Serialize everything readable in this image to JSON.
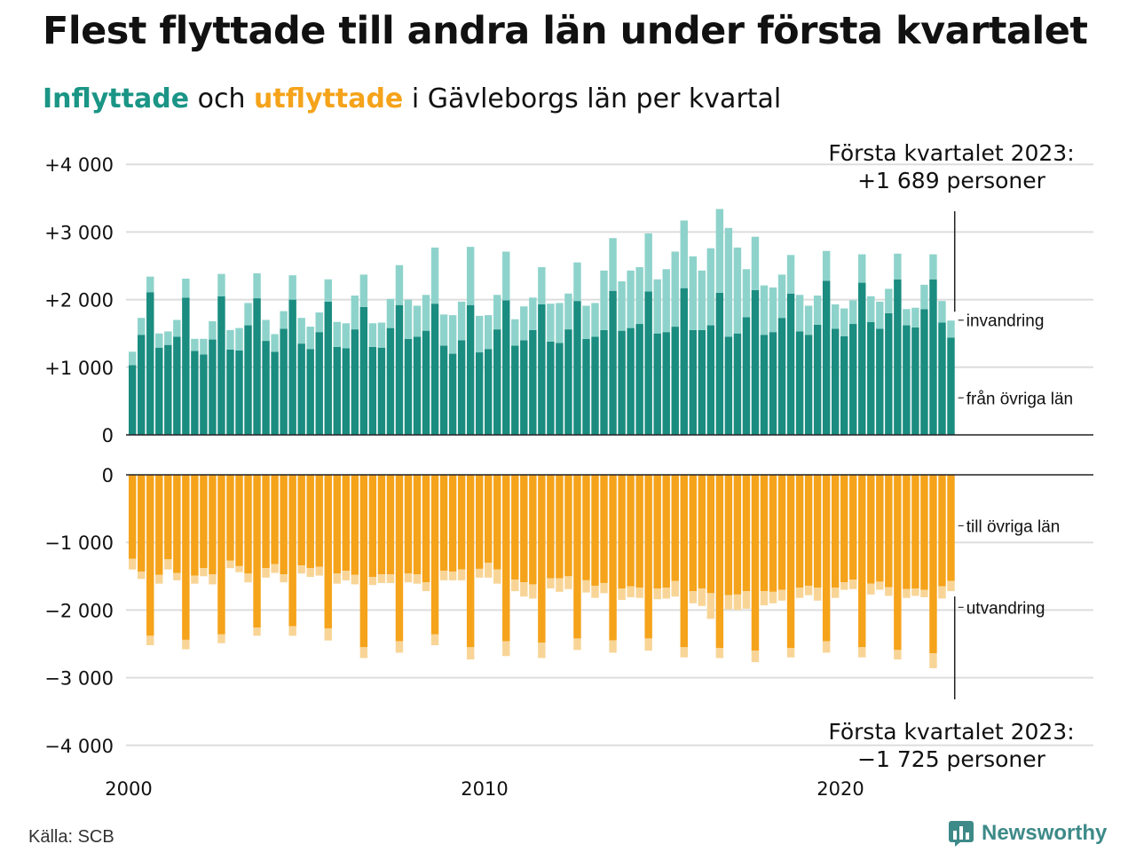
{
  "title": "Flest flyttade till andra län under första kvartalet",
  "subtitle": {
    "in_label": "Inflyttade",
    "connector": "och",
    "out_label": "utflyttade",
    "rest": "i Gävleborgs län per kvartal"
  },
  "source": "Källa: SCB",
  "brand": "Newsworthy",
  "colors": {
    "in_dark": "#1a8c80",
    "in_light": "#8ed3cb",
    "out_dark": "#f5a31a",
    "out_light": "#f8d597",
    "grid": "#dddddd"
  },
  "chart_data": {
    "type": "bar",
    "stacked": true,
    "quarters_start": "2000 Q1",
    "quarters_end": "2023 Q1",
    "x_ticks": [
      "2000",
      "2010",
      "2020"
    ],
    "top_panel": {
      "y_ticks": [
        "+4 000",
        "+3 000",
        "+2 000",
        "+1 000",
        "0"
      ],
      "ylim": [
        0,
        4000
      ],
      "series": [
        {
          "name": "från övriga län",
          "color": "#1a8c80",
          "values": [
            1030,
            1480,
            2110,
            1290,
            1330,
            1450,
            2030,
            1240,
            1190,
            1410,
            2050,
            1260,
            1250,
            1620,
            2020,
            1390,
            1230,
            1570,
            2000,
            1350,
            1270,
            1520,
            1970,
            1300,
            1280,
            1560,
            1890,
            1300,
            1290,
            1580,
            1920,
            1420,
            1450,
            1540,
            1940,
            1320,
            1200,
            1400,
            1920,
            1220,
            1270,
            1560,
            1990,
            1320,
            1400,
            1550,
            1930,
            1380,
            1360,
            1560,
            1980,
            1420,
            1450,
            1550,
            2130,
            1540,
            1580,
            1640,
            2120,
            1500,
            1520,
            1600,
            2170,
            1550,
            1550,
            1620,
            2100,
            1450,
            1500,
            1740,
            2140,
            1480,
            1520,
            1730,
            2090,
            1530,
            1480,
            1630,
            2280,
            1570,
            1460,
            1640,
            2250,
            1670,
            1570,
            1800,
            2300,
            1620,
            1590,
            1860,
            2300,
            1660,
            1440
          ]
        },
        {
          "name": "invandring",
          "color": "#8ed3cb",
          "values": [
            200,
            250,
            230,
            210,
            200,
            250,
            280,
            180,
            230,
            270,
            330,
            290,
            330,
            330,
            370,
            310,
            260,
            260,
            360,
            380,
            330,
            290,
            330,
            370,
            370,
            500,
            480,
            350,
            370,
            430,
            590,
            580,
            460,
            530,
            830,
            460,
            570,
            570,
            860,
            540,
            500,
            510,
            720,
            390,
            500,
            480,
            550,
            560,
            590,
            530,
            570,
            490,
            500,
            880,
            780,
            730,
            850,
            840,
            860,
            800,
            930,
            1110,
            1000,
            1090,
            880,
            1140,
            1240,
            1610,
            1270,
            710,
            790,
            730,
            660,
            640,
            570,
            540,
            430,
            430,
            440,
            360,
            410,
            350,
            420,
            380,
            400,
            360,
            380,
            240,
            290,
            360,
            370,
            320,
            250
          ]
        }
      ]
    },
    "bottom_panel": {
      "y_ticks": [
        "0",
        "−1 000",
        "−2 000",
        "−3 000",
        "−4 000"
      ],
      "ylim": [
        -4000,
        0
      ],
      "series": [
        {
          "name": "till övriga län",
          "color": "#f5a31a",
          "values": [
            -1240,
            -1430,
            -2380,
            -1480,
            -1250,
            -1450,
            -2440,
            -1490,
            -1380,
            -1470,
            -2360,
            -1270,
            -1350,
            -1460,
            -2260,
            -1380,
            -1320,
            -1470,
            -2240,
            -1340,
            -1380,
            -1360,
            -2270,
            -1460,
            -1420,
            -1480,
            -2550,
            -1510,
            -1470,
            -1470,
            -2460,
            -1460,
            -1470,
            -1590,
            -2360,
            -1420,
            -1430,
            -1400,
            -2550,
            -1390,
            -1300,
            -1400,
            -2460,
            -1550,
            -1590,
            -1620,
            -2480,
            -1530,
            -1530,
            -1500,
            -2420,
            -1560,
            -1640,
            -1600,
            -2450,
            -1680,
            -1650,
            -1670,
            -2420,
            -1680,
            -1670,
            -1570,
            -2550,
            -1720,
            -1680,
            -1750,
            -2560,
            -1780,
            -1770,
            -1720,
            -2600,
            -1720,
            -1730,
            -1700,
            -2560,
            -1670,
            -1640,
            -1670,
            -2460,
            -1670,
            -1590,
            -1550,
            -2550,
            -1610,
            -1580,
            -1660,
            -2590,
            -1690,
            -1680,
            -1700,
            -2640,
            -1650,
            -1570
          ]
        },
        {
          "name": "utvandring",
          "color": "#f8d597",
          "values": [
            -160,
            -110,
            -140,
            -130,
            -150,
            -110,
            -140,
            -120,
            -120,
            -150,
            -130,
            -110,
            -90,
            -130,
            -120,
            -140,
            -130,
            -120,
            -140,
            -120,
            -130,
            -130,
            -180,
            -150,
            -140,
            -140,
            -160,
            -120,
            -130,
            -130,
            -170,
            -130,
            -140,
            -130,
            -160,
            -140,
            -130,
            -160,
            -180,
            -130,
            -220,
            -210,
            -220,
            -170,
            -210,
            -210,
            -230,
            -150,
            -200,
            -190,
            -170,
            -180,
            -180,
            -150,
            -180,
            -170,
            -160,
            -150,
            -180,
            -160,
            -160,
            -230,
            -150,
            -180,
            -260,
            -380,
            -150,
            -210,
            -230,
            -260,
            -170,
            -210,
            -170,
            -160,
            -140,
            -150,
            -140,
            -190,
            -170,
            -150,
            -110,
            -140,
            -150,
            -160,
            -120,
            -130,
            -140,
            -130,
            -110,
            -110,
            -220,
            -180,
            -150
          ]
        }
      ]
    },
    "annotations": [
      {
        "panel": "top",
        "text": [
          "Första kvartalet 2023:",
          "+1 689 personer"
        ]
      },
      {
        "panel": "bottom",
        "text": [
          "Första kvartalet 2023:",
          "−1 725 personer"
        ]
      }
    ]
  }
}
